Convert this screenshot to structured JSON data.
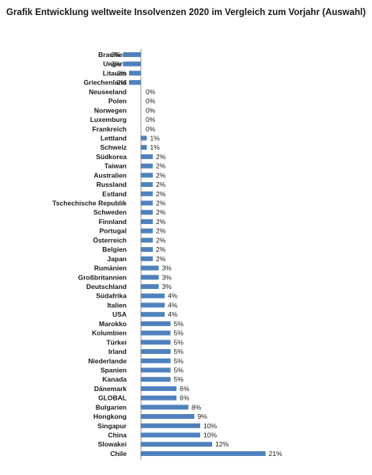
{
  "chart_data": {
    "type": "bar",
    "orientation": "horizontal",
    "title": "Grafik Entwicklung weltweite Insolvenzen 2020 im Vergleich zum Vorjahr (Auswahl)",
    "xlabel": "",
    "ylabel": "",
    "categories": [
      "Brasilien",
      "Ungarn",
      "Litauen",
      "Griechenland",
      "Neuseeland",
      "Polen",
      "Norwegen",
      "Luxemburg",
      "Frankreich",
      "Lettland",
      "Schweiz",
      "Südkorea",
      "Taiwan",
      "Australien",
      "Russland",
      "Estland",
      "Tschechische Republik",
      "Schweden",
      "Finnland",
      "Portugal",
      "Österreich",
      "Belgien",
      "Japan",
      "Rumänien",
      "Großbritannien",
      "Deutschland",
      "Südafrika",
      "Italien",
      "USA",
      "Marokko",
      "Kolumbien",
      "Türkei",
      "Irland",
      "Niederlande",
      "Spanien",
      "Kanada",
      "Dänemark",
      "GLOBAL",
      "Bulgarien",
      "Hongkong",
      "Singapur",
      "China",
      "Slowakei",
      "Chile"
    ],
    "values": [
      -3,
      -3,
      -2,
      -2,
      0,
      0,
      0,
      0,
      0,
      1,
      1,
      2,
      2,
      2,
      2,
      2,
      2,
      2,
      2,
      2,
      2,
      2,
      2,
      3,
      3,
      3,
      4,
      4,
      4,
      5,
      5,
      5,
      5,
      5,
      5,
      5,
      6,
      6,
      8,
      9,
      10,
      10,
      12,
      21
    ],
    "value_labels": [
      "-3%",
      "-3%",
      "-2%",
      "-2%",
      "0%",
      "0%",
      "0%",
      "0%",
      "0%",
      "1%",
      "1%",
      "2%",
      "2%",
      "2%",
      "2%",
      "2%",
      "2%",
      "2%",
      "2%",
      "2%",
      "2%",
      "2%",
      "2%",
      "3%",
      "3%",
      "3%",
      "4%",
      "4%",
      "4%",
      "5%",
      "5%",
      "5%",
      "5%",
      "5%",
      "5%",
      "5%",
      "6%",
      "6%",
      "8%",
      "9%",
      "10%",
      "10%",
      "12%",
      "21%"
    ],
    "xlim": [
      -3,
      21
    ],
    "grid": false,
    "legend": "none",
    "bar_color": "#4f81bd"
  }
}
